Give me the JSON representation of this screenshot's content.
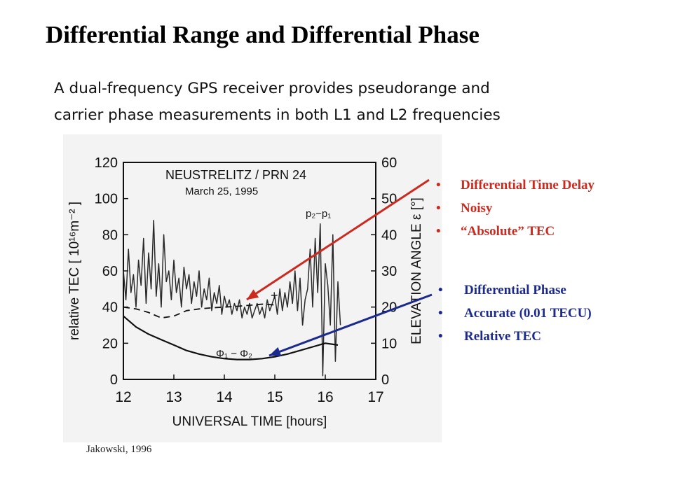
{
  "slide": {
    "title": "Differential Range and Differential Phase",
    "subtitle_lines": [
      "A dual-frequency GPS receiver provides pseudorange and",
      "carrier phase measurements in both L1 and L2 frequencies"
    ],
    "citation": "Jakowski, 1996"
  },
  "bullets_range": {
    "color": "#cc2a1f",
    "items": [
      "Differential Time Delay",
      "Noisy",
      "“Absolute” TEC"
    ]
  },
  "bullets_phase": {
    "color": "#1c2a8e",
    "items": [
      "Differential Phase",
      "Accurate (0.01 TECU)",
      "Relative TEC"
    ]
  },
  "chart_data": {
    "type": "line",
    "title": "NEUSTRELITZ / PRN 24",
    "subtitle": "March 25, 1995",
    "xlabel": "UNIVERSAL TIME [hours]",
    "ylabel": "relative TEC [ 10¹⁶m⁻² ]",
    "y2label": "ELEVATION ANGLE ε [°]",
    "xlim": [
      12,
      17
    ],
    "ylim": [
      0,
      120
    ],
    "y2lim": [
      0,
      60
    ],
    "xticks": [
      "12",
      "13",
      "14",
      "15",
      "16",
      "17"
    ],
    "yticks": [
      "0",
      "20",
      "40",
      "60",
      "80",
      "100",
      "120"
    ],
    "y2ticks": [
      "0",
      "10",
      "20",
      "30",
      "40",
      "50",
      "60"
    ],
    "grid": false,
    "annotations": {
      "range_label": "p₂−p₁",
      "phase_label": "Φ₁ − Φ₂",
      "marker": "+"
    },
    "series": [
      {
        "label": "p₂−p₁",
        "x": [
          12.0,
          12.05,
          12.1,
          12.15,
          12.2,
          12.25,
          12.3,
          12.35,
          12.4,
          12.45,
          12.5,
          12.55,
          12.6,
          12.65,
          12.7,
          12.75,
          12.8,
          12.85,
          12.9,
          12.95,
          13.0,
          13.05,
          13.1,
          13.15,
          13.2,
          13.25,
          13.3,
          13.35,
          13.4,
          13.45,
          13.5,
          13.55,
          13.6,
          13.65,
          13.7,
          13.75,
          13.8,
          13.85,
          13.9,
          13.95,
          14.0,
          14.05,
          14.1,
          14.15,
          14.2,
          14.25,
          14.3,
          14.35,
          14.4,
          14.45,
          14.5,
          14.55,
          14.6,
          14.65,
          14.7,
          14.75,
          14.8,
          14.85,
          14.9,
          14.95,
          15.0,
          15.05,
          15.1,
          15.15,
          15.2,
          15.25,
          15.3,
          15.35,
          15.4,
          15.45,
          15.5,
          15.55,
          15.6,
          15.65,
          15.7,
          15.75,
          15.8,
          15.85,
          15.9,
          15.95,
          16.0,
          16.05,
          16.1,
          16.15,
          16.2,
          16.25,
          16.3
        ],
        "y": [
          60,
          44,
          72,
          48,
          58,
          40,
          66,
          52,
          78,
          42,
          70,
          50,
          88,
          46,
          64,
          40,
          80,
          54,
          60,
          44,
          66,
          48,
          56,
          40,
          62,
          50,
          58,
          42,
          54,
          46,
          60,
          40,
          50,
          44,
          56,
          38,
          48,
          42,
          52,
          36,
          46,
          40,
          44,
          36,
          42,
          38,
          44,
          34,
          40,
          36,
          42,
          34,
          38,
          42,
          36,
          40,
          34,
          44,
          38,
          42,
          46,
          36,
          50,
          38,
          48,
          40,
          54,
          42,
          60,
          38,
          56,
          30,
          44,
          50,
          72,
          40,
          78,
          48,
          86,
          2,
          64,
          52,
          30,
          80,
          10,
          54,
          30
        ]
      },
      {
        "label": "Φ₁ − Φ₂",
        "x": [
          12.0,
          12.25,
          12.5,
          12.75,
          13.0,
          13.25,
          13.5,
          13.75,
          14.0,
          14.25,
          14.5,
          14.75,
          15.0,
          15.25,
          15.5,
          15.75,
          16.0,
          16.25
        ],
        "y": [
          35,
          29,
          25,
          22,
          19,
          16,
          14,
          12.5,
          11.5,
          11,
          11,
          11.5,
          12.5,
          14,
          16,
          18,
          20,
          19
        ]
      },
      {
        "label": "elevation angle",
        "axis": "y2",
        "x": [
          12.0,
          12.25,
          12.5,
          12.75,
          13.0,
          13.25,
          13.5,
          13.75,
          14.0,
          14.25,
          14.5,
          14.75,
          15.0
        ],
        "y": [
          20,
          19.5,
          18.5,
          17,
          17.5,
          19,
          19.5,
          19.8,
          20,
          20.2,
          20.5,
          20.8,
          20.6
        ]
      }
    ]
  }
}
